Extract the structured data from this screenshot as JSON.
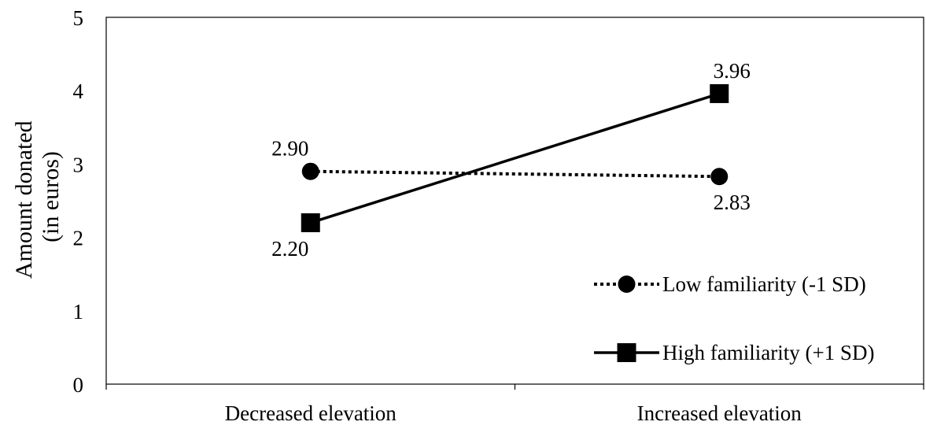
{
  "chart_data": {
    "type": "line",
    "categories": [
      "Decreased elevation",
      "Increased elevation"
    ],
    "ylabel_lines": [
      "Amount donated",
      "(in euros)"
    ],
    "xlabel": "",
    "ylim": [
      0,
      5
    ],
    "yticks": [
      "0",
      "1",
      "2",
      "3",
      "4",
      "5"
    ],
    "grid": false,
    "legend_position": "bottom-right",
    "series": [
      {
        "name": "Low familiarity (-1 SD)",
        "values": [
          2.9,
          2.83
        ],
        "labels": [
          "2.90",
          "2.83"
        ],
        "marker": "circle",
        "line_style": "dotted",
        "color": "#000000"
      },
      {
        "name": "High familiarity (+1 SD)",
        "values": [
          2.2,
          3.96
        ],
        "labels": [
          "2.20",
          "3.96"
        ],
        "marker": "square",
        "line_style": "solid",
        "color": "#000000"
      }
    ]
  }
}
